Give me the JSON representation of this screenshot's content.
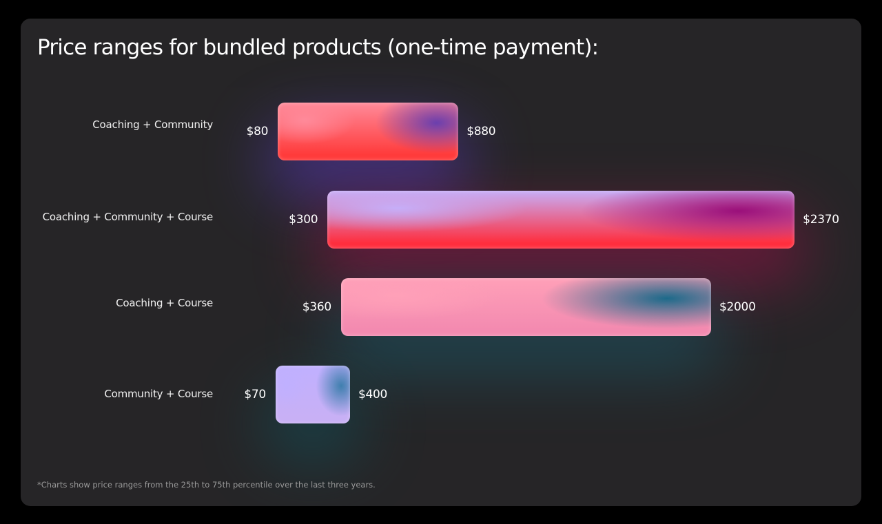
{
  "title": "Price ranges for bundled products (one-time payment):",
  "footnote": "*Charts show price ranges from the 25th to 75th percentile over the last three years.",
  "chart_data": {
    "type": "bar",
    "orientation": "horizontal-range",
    "title": "Price ranges for bundled products (one-time payment):",
    "categories": [
      "Coaching + Community",
      "Coaching + Community + Course",
      "Coaching + Course",
      "Community + Course"
    ],
    "low": [
      80,
      300,
      360,
      70
    ],
    "high": [
      880,
      2370,
      2000,
      400
    ],
    "low_labels": [
      "$80",
      "$300",
      "$360",
      "$70"
    ],
    "high_labels": [
      "$880",
      "$2370",
      "$2000",
      "$400"
    ],
    "grid": false,
    "colors": [
      [
        "#ff8a9a",
        "#6a3fae",
        "#ff3b3b"
      ],
      [
        "#c6aef8",
        "#9a0f7a",
        "#ff2e3e"
      ],
      [
        "#ffa0b8",
        "#1c6a8a",
        "#f38ab0"
      ],
      [
        "#c0b0ff",
        "#3f7fae",
        "#c8b0f5"
      ]
    ],
    "glow_colors": [
      "#5a3ac0",
      "#a0104a",
      "#1a5a6a",
      "#0f5560"
    ]
  }
}
